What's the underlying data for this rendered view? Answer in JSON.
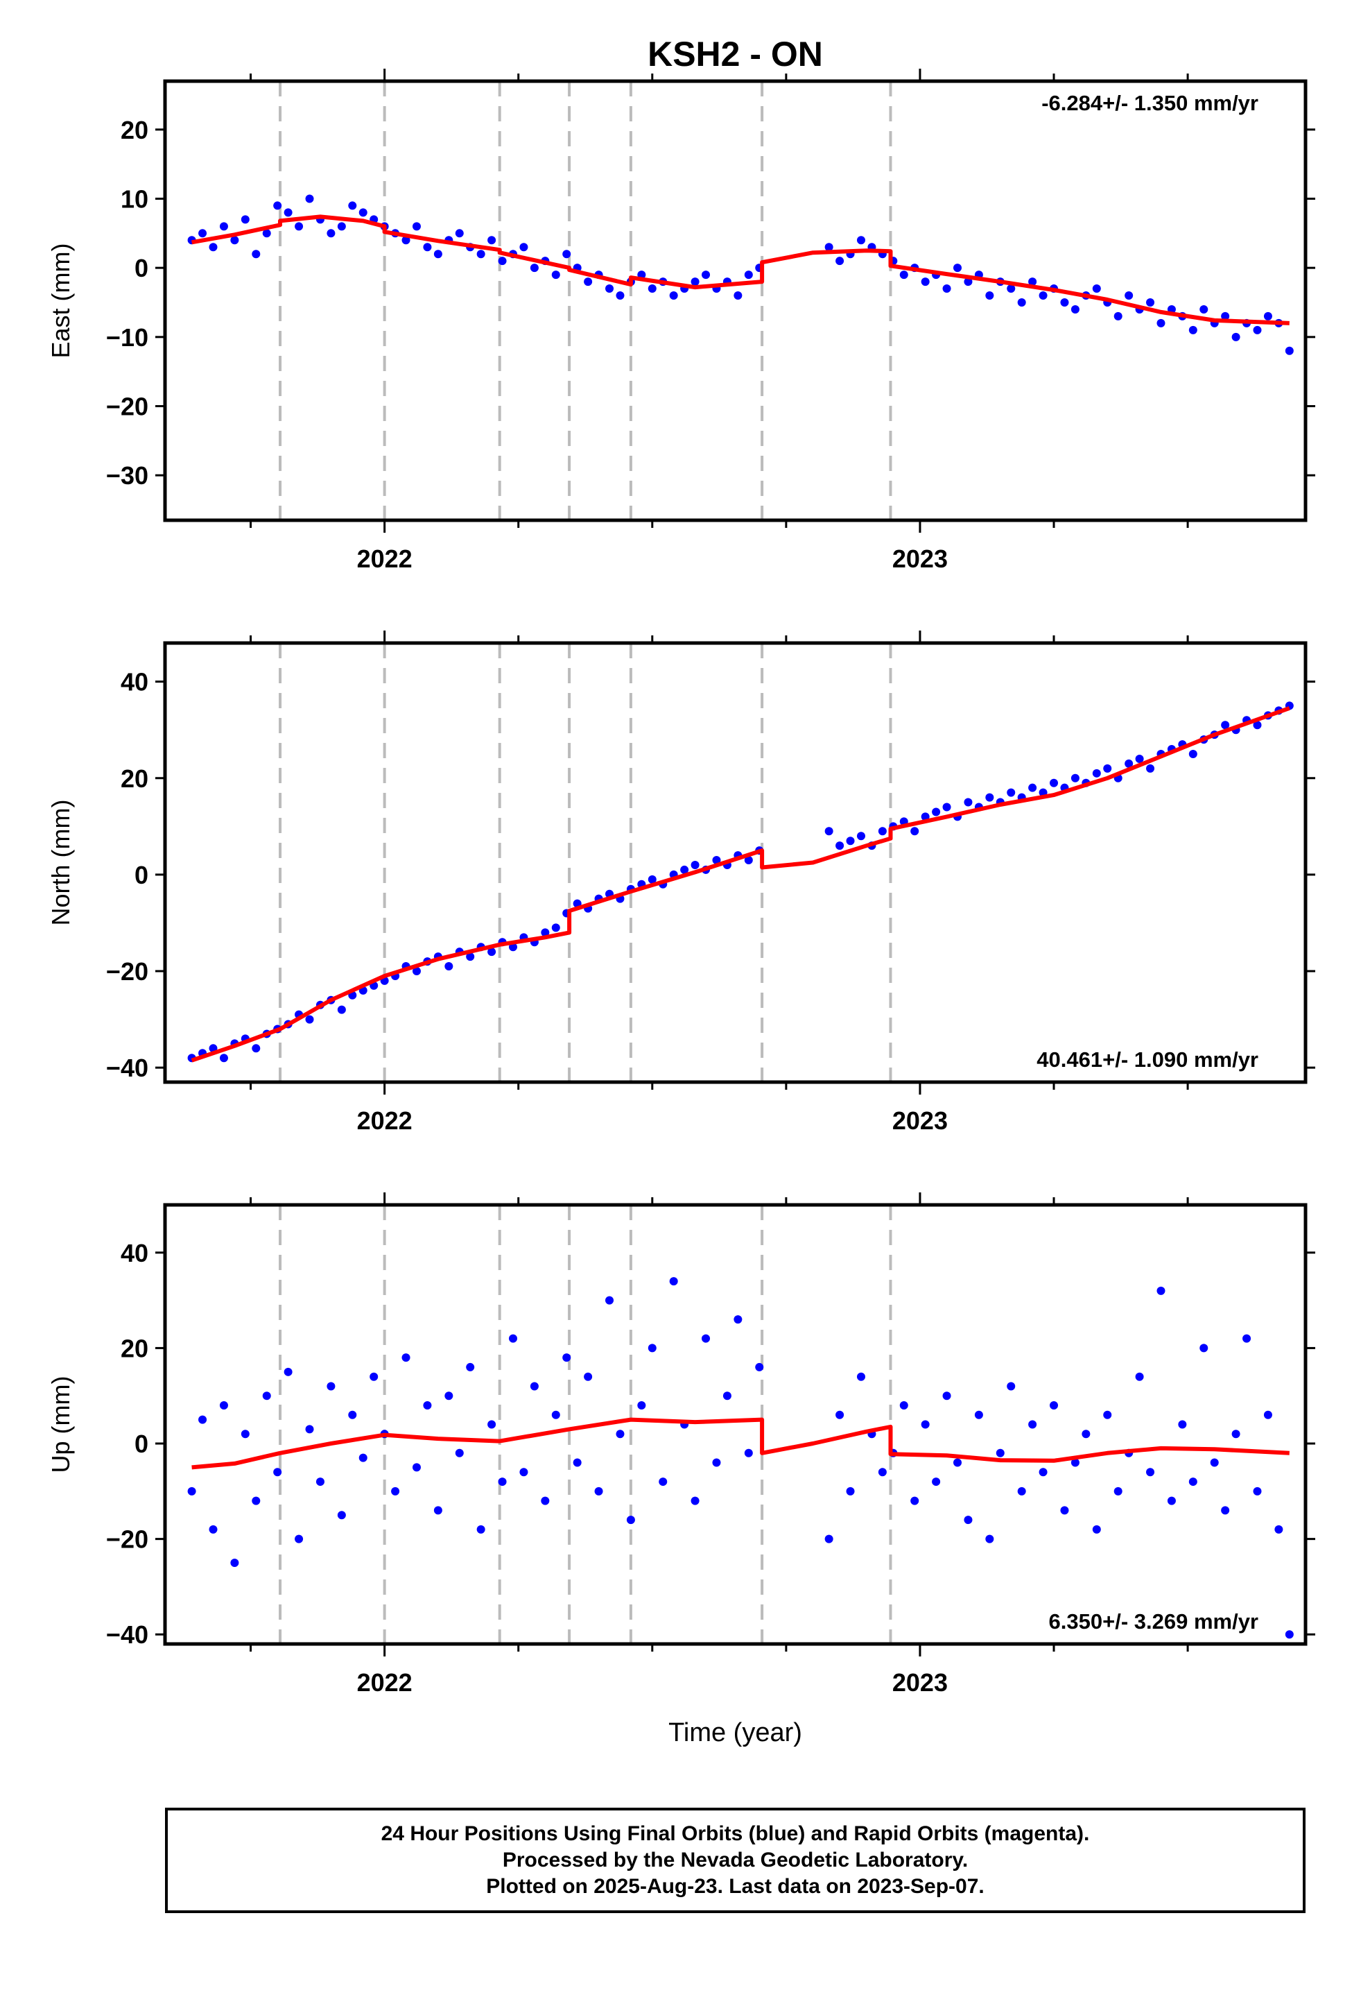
{
  "chart_data": [
    {
      "type": "scatter",
      "title": "KSH2 - ON",
      "ylabel": "East (mm)",
      "xlabel": "",
      "ylim": [
        -36.5,
        27
      ],
      "yticks": [
        20,
        10,
        0,
        -10,
        -20,
        -30
      ],
      "xlim": [
        2021.59,
        2023.72
      ],
      "xticks": [
        2022,
        2023
      ],
      "rate_text": "-6.284+/- 1.350 mm/yr",
      "rate_position": "top-right",
      "breaks": [
        2021.805,
        2022.0,
        2022.215,
        2022.345,
        2022.46,
        2022.705,
        2022.945
      ],
      "series": [
        {
          "color": "#0000ff",
          "x": [
            2021.64,
            2021.66,
            2021.68,
            2021.7,
            2021.72,
            2021.74,
            2021.76,
            2021.78,
            2021.8,
            2021.82,
            2021.84,
            2021.86,
            2021.88,
            2021.9,
            2021.92,
            2021.94,
            2021.96,
            2021.98,
            2022.0,
            2022.02,
            2022.04,
            2022.06,
            2022.08,
            2022.1,
            2022.12,
            2022.14,
            2022.16,
            2022.18,
            2022.2,
            2022.22,
            2022.24,
            2022.26,
            2022.28,
            2022.3,
            2022.32,
            2022.34,
            2022.36,
            2022.38,
            2022.4,
            2022.42,
            2022.44,
            2022.46,
            2022.48,
            2022.5,
            2022.52,
            2022.54,
            2022.56,
            2022.58,
            2022.6,
            2022.62,
            2022.64,
            2022.66,
            2022.68,
            2022.7,
            2022.83,
            2022.85,
            2022.87,
            2022.89,
            2022.91,
            2022.93,
            2022.95,
            2022.97,
            2022.99,
            2023.01,
            2023.03,
            2023.05,
            2023.07,
            2023.09,
            2023.11,
            2023.13,
            2023.15,
            2023.17,
            2023.19,
            2023.21,
            2023.23,
            2023.25,
            2023.27,
            2023.29,
            2023.31,
            2023.33,
            2023.35,
            2023.37,
            2023.39,
            2023.41,
            2023.43,
            2023.45,
            2023.47,
            2023.49,
            2023.51,
            2023.53,
            2023.55,
            2023.57,
            2023.59,
            2023.61,
            2023.63,
            2023.65,
            2023.67,
            2023.69
          ],
          "y": [
            4,
            5,
            3,
            6,
            4,
            7,
            2,
            5,
            9,
            8,
            6,
            10,
            7,
            5,
            6,
            9,
            8,
            7,
            6,
            5,
            4,
            6,
            3,
            2,
            4,
            5,
            3,
            2,
            4,
            1,
            2,
            3,
            0,
            1,
            -1,
            2,
            0,
            -2,
            -1,
            -3,
            -4,
            -2,
            -1,
            -3,
            -2,
            -4,
            -3,
            -2,
            -1,
            -3,
            -2,
            -4,
            -1,
            0,
            3,
            1,
            2,
            4,
            3,
            2,
            1,
            -1,
            0,
            -2,
            -1,
            -3,
            0,
            -2,
            -1,
            -4,
            -2,
            -3,
            -5,
            -2,
            -4,
            -3,
            -5,
            -6,
            -4,
            -3,
            -5,
            -7,
            -4,
            -6,
            -5,
            -8,
            -6,
            -7,
            -9,
            -6,
            -8,
            -7,
            -10,
            -8,
            -9,
            -7,
            -8,
            -12
          ]
        },
        {
          "color": "#ff0000",
          "x": [
            2021.64,
            2021.72,
            2021.805,
            2021.805,
            2021.88,
            2021.96,
            2022.0,
            2022.0,
            2022.1,
            2022.215,
            2022.215,
            2022.345,
            2022.345,
            2022.46,
            2022.46,
            2022.58,
            2022.705,
            2022.705,
            2022.8,
            2022.9,
            2022.945,
            2022.945,
            2023.05,
            2023.15,
            2023.25,
            2023.35,
            2023.45,
            2023.55,
            2023.69
          ],
          "y": [
            3.7,
            4.8,
            6.2,
            6.8,
            7.4,
            6.8,
            6.0,
            5.2,
            3.9,
            2.6,
            2.2,
            0.0,
            -0.3,
            -2.4,
            -1.4,
            -2.8,
            -2.0,
            0.8,
            2.2,
            2.5,
            2.4,
            0.3,
            -0.9,
            -2.0,
            -3.2,
            -4.6,
            -6.4,
            -7.6,
            -8.0
          ]
        }
      ]
    },
    {
      "type": "scatter",
      "title": "",
      "ylabel": "North (mm)",
      "xlabel": "",
      "ylim": [
        -43,
        48
      ],
      "yticks": [
        40,
        20,
        0,
        -20,
        -40
      ],
      "xlim": [
        2021.59,
        2023.72
      ],
      "xticks": [
        2022,
        2023
      ],
      "rate_text": "40.461+/- 1.090 mm/yr",
      "rate_position": "bottom-right",
      "breaks": [
        2021.805,
        2022.0,
        2022.215,
        2022.345,
        2022.46,
        2022.705,
        2022.945
      ],
      "series": [
        {
          "color": "#0000ff",
          "x": [
            2021.64,
            2021.66,
            2021.68,
            2021.7,
            2021.72,
            2021.74,
            2021.76,
            2021.78,
            2021.8,
            2021.82,
            2021.84,
            2021.86,
            2021.88,
            2021.9,
            2021.92,
            2021.94,
            2021.96,
            2021.98,
            2022.0,
            2022.02,
            2022.04,
            2022.06,
            2022.08,
            2022.1,
            2022.12,
            2022.14,
            2022.16,
            2022.18,
            2022.2,
            2022.22,
            2022.24,
            2022.26,
            2022.28,
            2022.3,
            2022.32,
            2022.34,
            2022.36,
            2022.38,
            2022.4,
            2022.42,
            2022.44,
            2022.46,
            2022.48,
            2022.5,
            2022.52,
            2022.54,
            2022.56,
            2022.58,
            2022.6,
            2022.62,
            2022.64,
            2022.66,
            2022.68,
            2022.7,
            2022.83,
            2022.85,
            2022.87,
            2022.89,
            2022.91,
            2022.93,
            2022.95,
            2022.97,
            2022.99,
            2023.01,
            2023.03,
            2023.05,
            2023.07,
            2023.09,
            2023.11,
            2023.13,
            2023.15,
            2023.17,
            2023.19,
            2023.21,
            2023.23,
            2023.25,
            2023.27,
            2023.29,
            2023.31,
            2023.33,
            2023.35,
            2023.37,
            2023.39,
            2023.41,
            2023.43,
            2023.45,
            2023.47,
            2023.49,
            2023.51,
            2023.53,
            2023.55,
            2023.57,
            2023.59,
            2023.61,
            2023.63,
            2023.65,
            2023.67,
            2023.69
          ],
          "y": [
            -38,
            -37,
            -36,
            -38,
            -35,
            -34,
            -36,
            -33,
            -32,
            -31,
            -29,
            -30,
            -27,
            -26,
            -28,
            -25,
            -24,
            -23,
            -22,
            -21,
            -19,
            -20,
            -18,
            -17,
            -19,
            -16,
            -17,
            -15,
            -16,
            -14,
            -15,
            -13,
            -14,
            -12,
            -11,
            -8,
            -6,
            -7,
            -5,
            -4,
            -5,
            -3,
            -2,
            -1,
            -2,
            0,
            1,
            2,
            1,
            3,
            2,
            4,
            3,
            5,
            9,
            6,
            7,
            8,
            6,
            9,
            10,
            11,
            9,
            12,
            13,
            14,
            12,
            15,
            14,
            16,
            15,
            17,
            16,
            18,
            17,
            19,
            18,
            20,
            19,
            21,
            22,
            20,
            23,
            24,
            22,
            25,
            26,
            27,
            25,
            28,
            29,
            31,
            30,
            32,
            31,
            33,
            34,
            35
          ]
        },
        {
          "color": "#ff0000",
          "x": [
            2021.64,
            2021.72,
            2021.805,
            2021.9,
            2022.0,
            2022.1,
            2022.215,
            2022.3,
            2022.345,
            2022.345,
            2022.46,
            2022.58,
            2022.705,
            2022.705,
            2022.8,
            2022.9,
            2022.945,
            2022.945,
            2023.05,
            2023.15,
            2023.25,
            2023.35,
            2023.45,
            2023.55,
            2023.69
          ],
          "y": [
            -38.5,
            -35.5,
            -32.0,
            -26.0,
            -21.0,
            -17.5,
            -14.5,
            -13.0,
            -12.0,
            -7.5,
            -3.5,
            0.5,
            5.0,
            1.5,
            2.5,
            6.0,
            7.5,
            9.5,
            12.0,
            14.5,
            16.5,
            20.0,
            24.5,
            29.0,
            34.5
          ]
        }
      ]
    },
    {
      "type": "scatter",
      "title": "",
      "ylabel": "Up (mm)",
      "xlabel": "Time (year)",
      "ylim": [
        -42,
        50
      ],
      "yticks": [
        40,
        20,
        0,
        -20,
        -40
      ],
      "xlim": [
        2021.59,
        2023.72
      ],
      "xticks": [
        2022,
        2023
      ],
      "rate_text": "6.350+/- 3.269 mm/yr",
      "rate_position": "bottom-right",
      "breaks": [
        2021.805,
        2022.0,
        2022.215,
        2022.345,
        2022.46,
        2022.705,
        2022.945
      ],
      "series": [
        {
          "color": "#0000ff",
          "x": [
            2021.64,
            2021.66,
            2021.68,
            2021.7,
            2021.72,
            2021.74,
            2021.76,
            2021.78,
            2021.8,
            2021.82,
            2021.84,
            2021.86,
            2021.88,
            2021.9,
            2021.92,
            2021.94,
            2021.96,
            2021.98,
            2022.0,
            2022.02,
            2022.04,
            2022.06,
            2022.08,
            2022.1,
            2022.12,
            2022.14,
            2022.16,
            2022.18,
            2022.2,
            2022.22,
            2022.24,
            2022.26,
            2022.28,
            2022.3,
            2022.32,
            2022.34,
            2022.36,
            2022.38,
            2022.4,
            2022.42,
            2022.44,
            2022.46,
            2022.48,
            2022.5,
            2022.52,
            2022.54,
            2022.56,
            2022.58,
            2022.6,
            2022.62,
            2022.64,
            2022.66,
            2022.68,
            2022.7,
            2022.83,
            2022.85,
            2022.87,
            2022.89,
            2022.91,
            2022.93,
            2022.95,
            2022.97,
            2022.99,
            2023.01,
            2023.03,
            2023.05,
            2023.07,
            2023.09,
            2023.11,
            2023.13,
            2023.15,
            2023.17,
            2023.19,
            2023.21,
            2023.23,
            2023.25,
            2023.27,
            2023.29,
            2023.31,
            2023.33,
            2023.35,
            2023.37,
            2023.39,
            2023.41,
            2023.43,
            2023.45,
            2023.47,
            2023.49,
            2023.51,
            2023.53,
            2023.55,
            2023.57,
            2023.59,
            2023.61,
            2023.63,
            2023.65,
            2023.67,
            2023.69
          ],
          "y": [
            -10,
            5,
            -18,
            8,
            -25,
            2,
            -12,
            10,
            -6,
            15,
            -20,
            3,
            -8,
            12,
            -15,
            6,
            -3,
            14,
            2,
            -10,
            18,
            -5,
            8,
            -14,
            10,
            -2,
            16,
            -18,
            4,
            -8,
            22,
            -6,
            12,
            -12,
            6,
            18,
            -4,
            14,
            -10,
            30,
            2,
            -16,
            8,
            20,
            -8,
            34,
            4,
            -12,
            22,
            -4,
            10,
            26,
            -2,
            16,
            -20,
            6,
            -10,
            14,
            2,
            -6,
            -2,
            8,
            -12,
            4,
            -8,
            10,
            -4,
            -16,
            6,
            -20,
            -2,
            12,
            -10,
            4,
            -6,
            8,
            -14,
            -4,
            2,
            -18,
            6,
            -10,
            -2,
            14,
            -6,
            32,
            -12,
            4,
            -8,
            20,
            -4,
            -14,
            2,
            22,
            -10,
            6,
            -18,
            -40
          ]
        },
        {
          "color": "#ff0000",
          "x": [
            2021.64,
            2021.72,
            2021.805,
            2021.9,
            2022.0,
            2022.1,
            2022.215,
            2022.345,
            2022.46,
            2022.58,
            2022.705,
            2022.705,
            2022.8,
            2022.9,
            2022.945,
            2022.945,
            2023.05,
            2023.15,
            2023.25,
            2023.35,
            2023.45,
            2023.55,
            2023.69
          ],
          "y": [
            -5.0,
            -4.2,
            -2.0,
            0.0,
            1.8,
            1.0,
            0.5,
            3.0,
            5.0,
            4.5,
            5.0,
            -2.0,
            0.0,
            2.5,
            3.5,
            -2.2,
            -2.5,
            -3.5,
            -3.6,
            -2.0,
            -1.0,
            -1.2,
            -2.0
          ]
        }
      ]
    }
  ],
  "footer": {
    "line1": "24 Hour Positions Using Final Orbits (blue) and Rapid Orbits (magenta).",
    "line2": "Processed by the Nevada Geodetic Laboratory.",
    "line3": "Plotted on 2025-Aug-23. Last data on 2023-Sep-07."
  }
}
